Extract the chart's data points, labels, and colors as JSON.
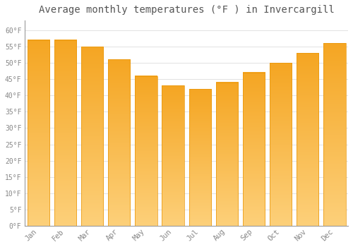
{
  "months": [
    "Jan",
    "Feb",
    "Mar",
    "Apr",
    "May",
    "Jun",
    "Jul",
    "Aug",
    "Sep",
    "Oct",
    "Nov",
    "Dec"
  ],
  "values": [
    57,
    57,
    55,
    51,
    46,
    43,
    42,
    44,
    47,
    50,
    53,
    56
  ],
  "bar_color_top": "#F5A623",
  "bar_color_bottom": "#FDD07A",
  "bar_edge_color": "#E8960A",
  "background_color": "#FFFFFF",
  "title": "Average monthly temperatures (°F ) in Invercargill",
  "title_fontsize": 10,
  "ylim": [
    0,
    63
  ],
  "ytick_values": [
    0,
    5,
    10,
    15,
    20,
    25,
    30,
    35,
    40,
    45,
    50,
    55,
    60
  ],
  "grid_color": "#dddddd",
  "tick_label_color": "#888888",
  "title_color": "#555555",
  "bar_width": 0.82
}
